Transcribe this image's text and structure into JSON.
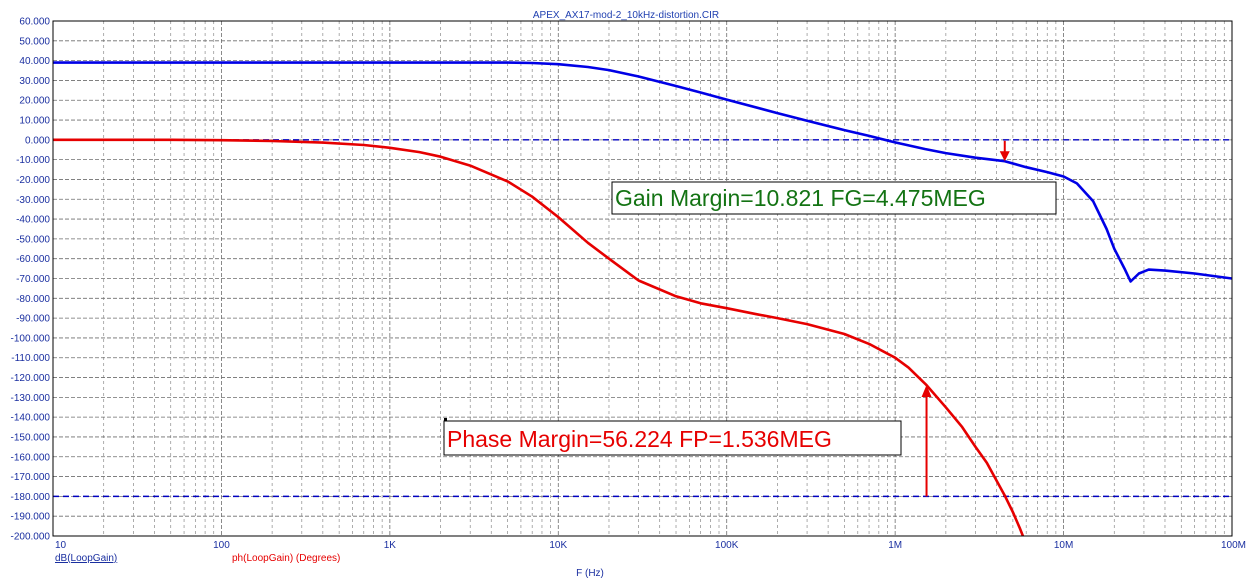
{
  "chart_data": {
    "type": "line",
    "title": "APEX_AX17-mod-2_10kHz-distortion.CIR",
    "xlabel": "F (Hz)",
    "x_scale": "log",
    "xlim": [
      10,
      100000000
    ],
    "ylim": [
      -200,
      60
    ],
    "grid": true,
    "x_ticks": [
      {
        "value": 10,
        "label": "10"
      },
      {
        "value": 100,
        "label": "100"
      },
      {
        "value": 1000,
        "label": "1K"
      },
      {
        "value": 10000,
        "label": "10K"
      },
      {
        "value": 100000,
        "label": "100K"
      },
      {
        "value": 1000000,
        "label": "1M"
      },
      {
        "value": 10000000,
        "label": "10M"
      },
      {
        "value": 100000000,
        "label": "100M"
      }
    ],
    "y_ticks": [
      {
        "value": 60,
        "label": "60.000"
      },
      {
        "value": 50,
        "label": "50.000"
      },
      {
        "value": 40,
        "label": "40.000"
      },
      {
        "value": 30,
        "label": "30.000"
      },
      {
        "value": 20,
        "label": "20.000"
      },
      {
        "value": 10,
        "label": "10.000"
      },
      {
        "value": 0,
        "label": "0.000"
      },
      {
        "value": -10,
        "label": "-10.000"
      },
      {
        "value": -20,
        "label": "-20.000"
      },
      {
        "value": -30,
        "label": "-30.000"
      },
      {
        "value": -40,
        "label": "-40.000"
      },
      {
        "value": -50,
        "label": "-50.000"
      },
      {
        "value": -60,
        "label": "-60.000"
      },
      {
        "value": -70,
        "label": "-70.000"
      },
      {
        "value": -80,
        "label": "-80.000"
      },
      {
        "value": -90,
        "label": "-90.000"
      },
      {
        "value": -100,
        "label": "-100.000"
      },
      {
        "value": -110,
        "label": "-110.000"
      },
      {
        "value": -120,
        "label": "-120.000"
      },
      {
        "value": -130,
        "label": "-130.000"
      },
      {
        "value": -140,
        "label": "-140.000"
      },
      {
        "value": -150,
        "label": "-150.000"
      },
      {
        "value": -160,
        "label": "-160.000"
      },
      {
        "value": -170,
        "label": "-170.000"
      },
      {
        "value": -180,
        "label": "-180.000"
      },
      {
        "value": -190,
        "label": "-190.000"
      },
      {
        "value": -200,
        "label": "-200.000"
      }
    ],
    "series": [
      {
        "name": "dB(LoopGain)",
        "color": "#0000e6",
        "x": [
          10,
          100,
          1000,
          3000,
          5000,
          7000,
          10000,
          15000,
          20000,
          30000,
          50000,
          70000,
          100000,
          200000,
          300000,
          500000,
          700000,
          1000000,
          1500000,
          2000000,
          3000000,
          4475000,
          6000000,
          8000000,
          10000000,
          12000000,
          15000000,
          18000000,
          20000000,
          23000000,
          25000000,
          28000000,
          32000000,
          40000000,
          60000000,
          100000000
        ],
        "values": [
          39,
          39,
          39,
          39,
          39,
          38.8,
          38.2,
          36.8,
          35.2,
          32,
          27.2,
          23.9,
          20.3,
          13.5,
          9.6,
          4.9,
          2,
          -1.3,
          -4.6,
          -6.7,
          -9,
          -10.8,
          -13.8,
          -16.3,
          -18.5,
          -22,
          -31,
          -45,
          -55,
          -65,
          -71.5,
          -67.5,
          -65.5,
          -66,
          -67.5,
          -70
        ]
      },
      {
        "name": "ph(LoopGain) (Degrees)",
        "color": "#e60000",
        "x": [
          10,
          50,
          100,
          200,
          400,
          700,
          1000,
          1500,
          2000,
          3000,
          5000,
          7000,
          10000,
          15000,
          20000,
          30000,
          50000,
          70000,
          100000,
          150000,
          200000,
          300000,
          500000,
          700000,
          1000000,
          1200000,
          1536000,
          2000000,
          2500000,
          3000000,
          3500000,
          4000000,
          4500000,
          5000000,
          5500000,
          5800000
        ],
        "values": [
          0,
          0,
          -0.2,
          -0.6,
          -1.4,
          -2.6,
          -4,
          -6.2,
          -8.5,
          -13,
          -21,
          -28.7,
          -39,
          -52,
          -60,
          -71,
          -79,
          -82.5,
          -85,
          -88,
          -90,
          -93,
          -98,
          -103,
          -110,
          -115,
          -123.8,
          -135,
          -145,
          -155,
          -163,
          -172,
          -180,
          -188,
          -196,
          -201
        ]
      }
    ],
    "reference_lines": [
      {
        "y": 0,
        "color": "#0000c0"
      },
      {
        "y": -180,
        "color": "#0000c0"
      }
    ],
    "annotations": [
      {
        "text": "Gain Margin=10.821 FG=4.475MEG",
        "color": "#137313",
        "x": 4475000,
        "y": -10.821,
        "marker": "arrow-down"
      },
      {
        "text": "Phase Margin=56.224 FP=1.536MEG",
        "color": "#e60000",
        "x": 1536000,
        "y": -123.776,
        "marker": "arrow-up-from--180"
      }
    ],
    "legend": [
      {
        "label": "dB(LoopGain)",
        "color": "#1a2fa0"
      },
      {
        "label": "ph(LoopGain) (Degrees)",
        "color": "#e60000"
      }
    ]
  }
}
